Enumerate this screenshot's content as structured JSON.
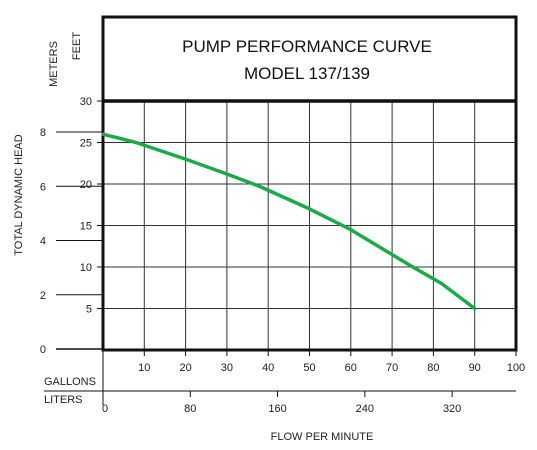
{
  "chart_data": {
    "type": "line",
    "title": [
      "PUMP PERFORMANCE CURVE",
      "MODEL 137/139"
    ],
    "xlabel": "FLOW PER MINUTE",
    "ylabel": "TOTAL DYNAMIC HEAD",
    "x_axis": {
      "gallons_label": "GALLONS",
      "liters_label": "LITERS",
      "gallons_ticks": [
        "0",
        "10",
        "20",
        "30",
        "40",
        "50",
        "60",
        "70",
        "80",
        "90",
        "100"
      ],
      "gallons_range": [
        0,
        100
      ],
      "liters_ticks": [
        "0",
        "80",
        "160",
        "240",
        "320"
      ],
      "liters_values": [
        0,
        80,
        160,
        240,
        320
      ]
    },
    "y_axis": {
      "feet_label": "FEET",
      "meters_label": "METERS",
      "feet_ticks": [
        "5",
        "10",
        "15",
        "20",
        "25",
        "30"
      ],
      "feet_values": [
        5,
        10,
        15,
        20,
        25,
        30
      ],
      "meters_ticks": [
        "0",
        "2",
        "4",
        "6",
        "8"
      ],
      "meters_values": [
        0,
        2,
        4,
        6,
        8
      ],
      "feet_range": [
        0,
        30
      ]
    },
    "grid": true,
    "series": [
      {
        "color": "#1aaa4a",
        "x_unit": "gallons",
        "y_unit": "feet",
        "points": [
          [
            0,
            26
          ],
          [
            8,
            25
          ],
          [
            20,
            23
          ],
          [
            30,
            21.2
          ],
          [
            38,
            19.7
          ],
          [
            50,
            17
          ],
          [
            60,
            14.5
          ],
          [
            70,
            11.5
          ],
          [
            75,
            10
          ],
          [
            82,
            8
          ],
          [
            90,
            5
          ]
        ]
      }
    ]
  },
  "colors": {
    "curve": "#1aaa4a",
    "frame": "#111111",
    "grid": "#333333"
  }
}
